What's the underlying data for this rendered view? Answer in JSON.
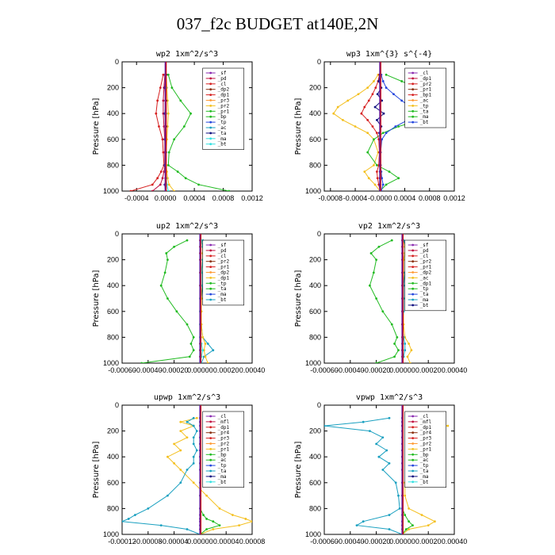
{
  "title": "037_f2c  BUDGET at140E,2N",
  "colors": {
    "red": "#d62020",
    "purple": "#8a2ab0",
    "green": "#22bb22",
    "yellow": "#f4c020",
    "blue": "#2244dd",
    "cyan": "#1aa0c0",
    "lightcyan": "#33e0e0",
    "navy": "#101080",
    "brown": "#8b3010",
    "crimson": "#c01040",
    "orange": "#ff9933",
    "olive": "#888800"
  },
  "chart_data": [
    {
      "type": "line",
      "title": "wp2   1xm^2/s^3",
      "ylabel": "Pressure [hPa]",
      "ylim": [
        1000,
        0
      ],
      "xlim": [
        -0.0006,
        0.0012
      ],
      "xticks": [
        "-0.0004",
        "0.0000",
        "0.0004",
        "0.0008",
        "0.0012"
      ],
      "xtick_values": [
        -0.0004,
        0,
        0.0004,
        0.0008,
        0.0012
      ],
      "yticks": [
        "0",
        "200",
        "400",
        "600",
        "800",
        "1000"
      ],
      "legend": [
        "_sf",
        "_pd",
        "_cl",
        "_dp2",
        "_dp1",
        "_pr3",
        "_pr2",
        "_pr1",
        "_bp",
        "_tp",
        "_ac",
        "_ta",
        "_ma",
        "_bt"
      ],
      "pressure": [
        100,
        200,
        300,
        400,
        500,
        600,
        700,
        800,
        850,
        900,
        950,
        1000
      ],
      "series": [
        {
          "name": "_cl",
          "color": "red",
          "values": [
            -3e-05,
            -7e-05,
            -0.00011,
            -0.00013,
            -9e-05,
            -4e-05,
            -3e-05,
            -2e-05,
            -6e-05,
            -0.00011,
            -0.00018,
            -0.00048
          ]
        },
        {
          "name": "_pr1",
          "color": "green",
          "values": [
            4e-05,
            9e-05,
            0.00021,
            0.00035,
            0.00026,
            0.00012,
            5e-05,
            4e-05,
            0.00017,
            0.00028,
            0.00046,
            0.00088
          ]
        },
        {
          "name": "_pr2",
          "color": "yellow",
          "values": [
            1e-05,
            2e-05,
            3e-05,
            4e-05,
            3e-05,
            2e-05,
            1e-05,
            1e-05,
            2e-05,
            3e-05,
            5e-05,
            0.00012
          ]
        },
        {
          "name": "_dp1",
          "color": "crimson",
          "values": [
            -1e-05,
            -2e-05,
            -3e-05,
            -3e-05,
            -2e-05,
            -1e-05,
            -1e-05,
            -1e-05,
            -2e-05,
            -4e-05,
            -7e-05,
            -0.00018
          ]
        },
        {
          "name": "_bt",
          "color": "navy",
          "values": [
            1e-05,
            -1e-05,
            1e-05,
            -1e-05,
            1e-05,
            -1e-05,
            1e-05,
            -1e-05,
            0,
            1e-05,
            -1e-05,
            0
          ]
        },
        {
          "name": "_ma",
          "color": "lightcyan",
          "values": [
            0,
            1e-05,
            0,
            1e-05,
            0,
            0,
            1e-05,
            0,
            0,
            1e-05,
            2e-05,
            4e-05
          ]
        },
        {
          "name": "_sf",
          "color": "purple",
          "values": [
            0,
            0,
            0,
            0,
            0,
            0,
            0,
            0,
            0,
            0,
            0,
            0
          ]
        }
      ]
    },
    {
      "type": "line",
      "title": "wp3   1xm^{3} s^{-4}",
      "ylabel": "Pressure [hPa]",
      "ylim": [
        1000,
        0
      ],
      "xlim": [
        -0.0009,
        0.0012
      ],
      "xticks": [
        "-0.0008",
        "-0.0004",
        "-0.0000",
        "0.0004",
        "0.0008",
        "0.0012"
      ],
      "xtick_values": [
        -0.0008,
        -0.0004,
        0,
        0.0004,
        0.0008,
        0.0012
      ],
      "yticks": [
        "0",
        "200",
        "400",
        "600",
        "800",
        "1000"
      ],
      "legend": [
        "_cl",
        "_dp1",
        "_pr2",
        "_pr1",
        "_bp1",
        "_ac",
        "_tp",
        "_ta",
        "_ma",
        "_bt"
      ],
      "pressure": [
        100,
        150,
        200,
        250,
        300,
        350,
        400,
        450,
        500,
        550,
        600,
        700,
        800,
        850,
        900,
        950,
        1000
      ],
      "series": [
        {
          "name": "_pr2",
          "color": "yellow",
          "values": [
            -3e-05,
            -0.0001,
            -0.0002,
            -0.00035,
            -0.00052,
            -0.00068,
            -0.00075,
            -0.0006,
            -0.0004,
            -0.0002,
            -0.0001,
            -3e-05,
            -0.0001,
            -0.00025,
            -0.00018,
            -8e-05,
            0
          ]
        },
        {
          "name": "_ac",
          "color": "green",
          "values": [
            0.0001,
            0.00035,
            0.0006,
            0.00065,
            0.0007,
            0.00085,
            0.00105,
            0.00065,
            0.0003,
            5e-05,
            -0.0001,
            -0.0002,
            -5e-05,
            0.00015,
            0.0003,
            0.0001,
            0
          ]
        },
        {
          "name": "_tp",
          "color": "blue",
          "values": [
            2e-05,
            5e-05,
            0.0001,
            0.00022,
            0.00035,
            0.0005,
            0.00065,
            0.00045,
            0.00025,
            0.0001,
            3e-05,
            1e-05,
            1e-05,
            2e-05,
            3e-05,
            5e-05,
            2e-05
          ]
        },
        {
          "name": "_cl",
          "color": "red",
          "values": [
            -1e-05,
            -3e-05,
            -7e-05,
            -0.00012,
            -0.00018,
            -0.00025,
            -0.0003,
            -0.0002,
            -0.00012,
            -5e-05,
            -2e-05,
            -1e-05,
            -2e-05,
            -5e-05,
            -4e-05,
            -2e-05,
            0
          ]
        },
        {
          "name": "_bt",
          "color": "navy",
          "values": [
            0,
            -2e-05,
            2e-05,
            -4e-05,
            3e-05,
            -8e-05,
            6e-05,
            -5e-05,
            2e-05,
            -1e-05,
            0,
            0,
            0,
            0,
            0,
            0,
            0
          ]
        }
      ]
    },
    {
      "type": "line",
      "title": "up2   1xm^2/s^3",
      "ylabel": "Pressure [hPa]",
      "ylim": [
        1000,
        0
      ],
      "xlim": [
        -0.0006,
        0.0004
      ],
      "xticks": [
        "-0.00060",
        "-0.00040",
        "-0.00020",
        "0.00000",
        "0.00020",
        "0.00040"
      ],
      "xtick_values": [
        -0.0006,
        -0.0004,
        -0.0002,
        0,
        0.0002,
        0.0004
      ],
      "yticks": [
        "0",
        "200",
        "400",
        "600",
        "800",
        "1000"
      ],
      "legend": [
        "_sf",
        "_pd",
        "_cl",
        "_pr2",
        "_pr1",
        "_dp2",
        "_dp1",
        "_tp",
        "_ta",
        "_ma",
        "_bt"
      ],
      "pressure": [
        50,
        100,
        150,
        200,
        300,
        400,
        500,
        600,
        700,
        800,
        850,
        900,
        950,
        1000
      ],
      "series": [
        {
          "name": "_dp2",
          "color": "green",
          "values": [
            -0.0001,
            -0.0002,
            -0.00026,
            -0.00025,
            -0.00027,
            -0.0003,
            -0.00025,
            -0.00018,
            -0.0001,
            -5e-05,
            -7e-05,
            -5e-05,
            -8e-05,
            -0.00045
          ]
        },
        {
          "name": "_tp",
          "color": "cyan",
          "values": [
            2e-05,
            6e-05,
            5e-05,
            3e-05,
            2e-05,
            2e-05,
            1e-05,
            1e-05,
            1e-05,
            2e-05,
            6e-05,
            0.0001,
            3e-05,
            1e-05
          ]
        },
        {
          "name": "_pr2",
          "color": "yellow",
          "values": [
            1e-05,
            2e-05,
            2e-05,
            2e-05,
            1e-05,
            1e-05,
            1e-05,
            1e-05,
            1e-05,
            2e-05,
            4e-05,
            3e-05,
            4e-05,
            6e-05
          ]
        },
        {
          "name": "_cl",
          "color": "red",
          "values": [
            0,
            0,
            0,
            0,
            0,
            0,
            0,
            0,
            0,
            0,
            0,
            0,
            0,
            0
          ]
        },
        {
          "name": "_ma",
          "color": "lightcyan",
          "values": [
            1e-05,
            2e-05,
            3e-05,
            2e-05,
            1e-05,
            1e-05,
            0,
            0,
            0,
            0,
            1e-05,
            2e-05,
            1e-05,
            0
          ]
        }
      ]
    },
    {
      "type": "line",
      "title": "vp2   1xm^2/s^3",
      "ylabel": "Pressure [hPa]",
      "ylim": [
        1000,
        0
      ],
      "xlim": [
        -0.0006,
        0.0004
      ],
      "xticks": [
        "-0.00060",
        "-0.00040",
        "-0.00020",
        "0.00000",
        "0.00020",
        "0.00040"
      ],
      "xtick_values": [
        -0.0006,
        -0.0004,
        -0.0002,
        0,
        0.0002,
        0.0004
      ],
      "yticks": [
        "0",
        "200",
        "400",
        "600",
        "800",
        "1000"
      ],
      "legend": [
        "_sf",
        "_pd",
        "_cl",
        "_pr2",
        "_pr1",
        "_dp2",
        "_ac",
        "_dp1",
        "_tp",
        "_ta",
        "_ma",
        "_bt"
      ],
      "pressure": [
        50,
        100,
        150,
        200,
        300,
        400,
        500,
        600,
        700,
        800,
        850,
        900,
        950,
        1000
      ],
      "series": [
        {
          "name": "_dp2",
          "color": "green",
          "values": [
            -8e-05,
            -0.00018,
            -0.00024,
            -0.0002,
            -0.00022,
            -0.00025,
            -0.0002,
            -0.00015,
            -8e-05,
            -4e-05,
            -6e-05,
            -3e-05,
            -6e-05,
            -0.0002
          ]
        },
        {
          "name": "_pr2",
          "color": "yellow",
          "values": [
            1e-05,
            2e-05,
            2e-05,
            1e-05,
            1e-05,
            1e-05,
            1e-05,
            1e-05,
            1e-05,
            2e-05,
            5e-05,
            7e-05,
            4e-05,
            6e-05
          ]
        },
        {
          "name": "_tp",
          "color": "cyan",
          "values": [
            1e-05,
            3e-05,
            4e-05,
            3e-05,
            2e-05,
            1e-05,
            1e-05,
            1e-05,
            0,
            1e-05,
            2e-05,
            2e-05,
            1e-05,
            0
          ]
        },
        {
          "name": "_cl",
          "color": "red",
          "values": [
            0,
            0,
            0,
            0,
            0,
            0,
            0,
            0,
            0,
            0,
            0,
            0,
            0,
            0
          ]
        }
      ]
    },
    {
      "type": "line",
      "title": "upwp   1xm^2/s^3",
      "ylabel": "Pressure [hPa]",
      "ylim": [
        1000,
        0
      ],
      "xlim": [
        -0.00012,
        8e-05
      ],
      "xticks": [
        "-0.00012",
        "-0.00008",
        "-0.00004",
        "0.00000",
        "0.00004",
        "0.00008"
      ],
      "xtick_values": [
        -0.00012,
        -8e-05,
        -4e-05,
        0,
        4e-05,
        8e-05
      ],
      "yticks": [
        "0",
        "200",
        "400",
        "600",
        "800",
        "1000"
      ],
      "legend": [
        "_cl",
        "_mfl",
        "_dp1",
        "_pr4",
        "_pr3",
        "_pr2",
        "_pr1",
        "_bp",
        "_ac",
        "_tp",
        "_ta",
        "_ma",
        "_bt"
      ],
      "pressure": [
        100,
        130,
        160,
        200,
        250,
        300,
        350,
        400,
        450,
        500,
        600,
        700,
        800,
        850,
        880,
        900,
        930,
        960,
        1000
      ],
      "series": [
        {
          "name": "_pr1",
          "color": "yellow",
          "values": [
            -5e-06,
            -3e-05,
            -1e-05,
            -3e-05,
            -2e-05,
            -4e-05,
            -3e-05,
            -5e-05,
            -4e-05,
            -3e-05,
            -1e-05,
            1e-05,
            3e-05,
            5e-05,
            7e-05,
            8e-05,
            6e-05,
            2e-05,
            0
          ]
        },
        {
          "name": "_tp",
          "color": "cyan",
          "values": [
            -1e-05,
            -2e-05,
            -1e-05,
            -5e-06,
            -1e-05,
            -1e-05,
            -5e-06,
            -1e-05,
            -1e-05,
            -2e-05,
            -3e-05,
            -5e-05,
            -8e-05,
            -0.0001,
            -0.00011,
            -0.00012,
            -6e-05,
            -2e-05,
            0
          ]
        },
        {
          "name": "_bp",
          "color": "green",
          "values": [
            0,
            0,
            0,
            0,
            0,
            0,
            0,
            0,
            0,
            0,
            0,
            0,
            0,
            5e-06,
            1e-05,
            2e-05,
            3e-05,
            1e-05,
            0
          ]
        },
        {
          "name": "_cl",
          "color": "purple",
          "values": [
            0,
            0,
            0,
            0,
            0,
            0,
            0,
            0,
            0,
            0,
            0,
            0,
            0,
            0,
            0,
            0,
            0,
            0,
            0
          ]
        }
      ]
    },
    {
      "type": "line",
      "title": "vpwp   1xm^2/s^3",
      "ylabel": "Pressure [hPa]",
      "ylim": [
        1000,
        0
      ],
      "xlim": [
        -0.0006,
        0.0004
      ],
      "xticks": [
        "-0.00060",
        "-0.00040",
        "-0.00020",
        "0.00000",
        "0.00020",
        "0.00040"
      ],
      "xtick_values": [
        -0.0006,
        -0.0004,
        -0.0002,
        0,
        0.0002,
        0.0004
      ],
      "yticks": [
        "0",
        "200",
        "400",
        "600",
        "800",
        "1000"
      ],
      "legend": [
        "_cl",
        "_mfl",
        "_dp1",
        "_pr4",
        "_pr3",
        "_pr2",
        "_pr1",
        "_bp",
        "_ac",
        "_tp",
        "_ta",
        "_ma",
        "_bt"
      ],
      "pressure": [
        100,
        130,
        160,
        200,
        250,
        300,
        350,
        400,
        450,
        500,
        600,
        700,
        800,
        850,
        900,
        930,
        960,
        1000
      ],
      "series": [
        {
          "name": "_tp",
          "color": "cyan",
          "values": [
            -0.0001,
            -0.0003,
            -0.0006,
            -0.00025,
            -0.00015,
            -0.0002,
            -0.00012,
            -0.00018,
            -0.0001,
            -0.00015,
            -5e-05,
            -3e-05,
            -2e-05,
            -0.0001,
            -0.0003,
            -0.00035,
            -0.0001,
            0
          ]
        },
        {
          "name": "_pr1",
          "color": "yellow",
          "values": [
            5e-05,
            0.00018,
            0.00035,
            0.0001,
            5e-05,
            0.0001,
            5e-05,
            8e-05,
            3e-05,
            5e-05,
            2e-05,
            2e-05,
            5e-05,
            0.00015,
            0.00025,
            0.0002,
            5e-05,
            0
          ]
        },
        {
          "name": "_bp",
          "color": "green",
          "values": [
            0,
            0,
            0,
            0,
            0,
            0,
            0,
            0,
            0,
            0,
            0,
            0,
            0,
            2e-05,
            5e-05,
            8e-05,
            3e-05,
            0
          ]
        },
        {
          "name": "_cl",
          "color": "purple",
          "values": [
            0,
            0,
            0,
            0,
            0,
            0,
            0,
            0,
            0,
            0,
            0,
            0,
            0,
            0,
            0,
            0,
            0,
            0
          ]
        }
      ]
    }
  ]
}
